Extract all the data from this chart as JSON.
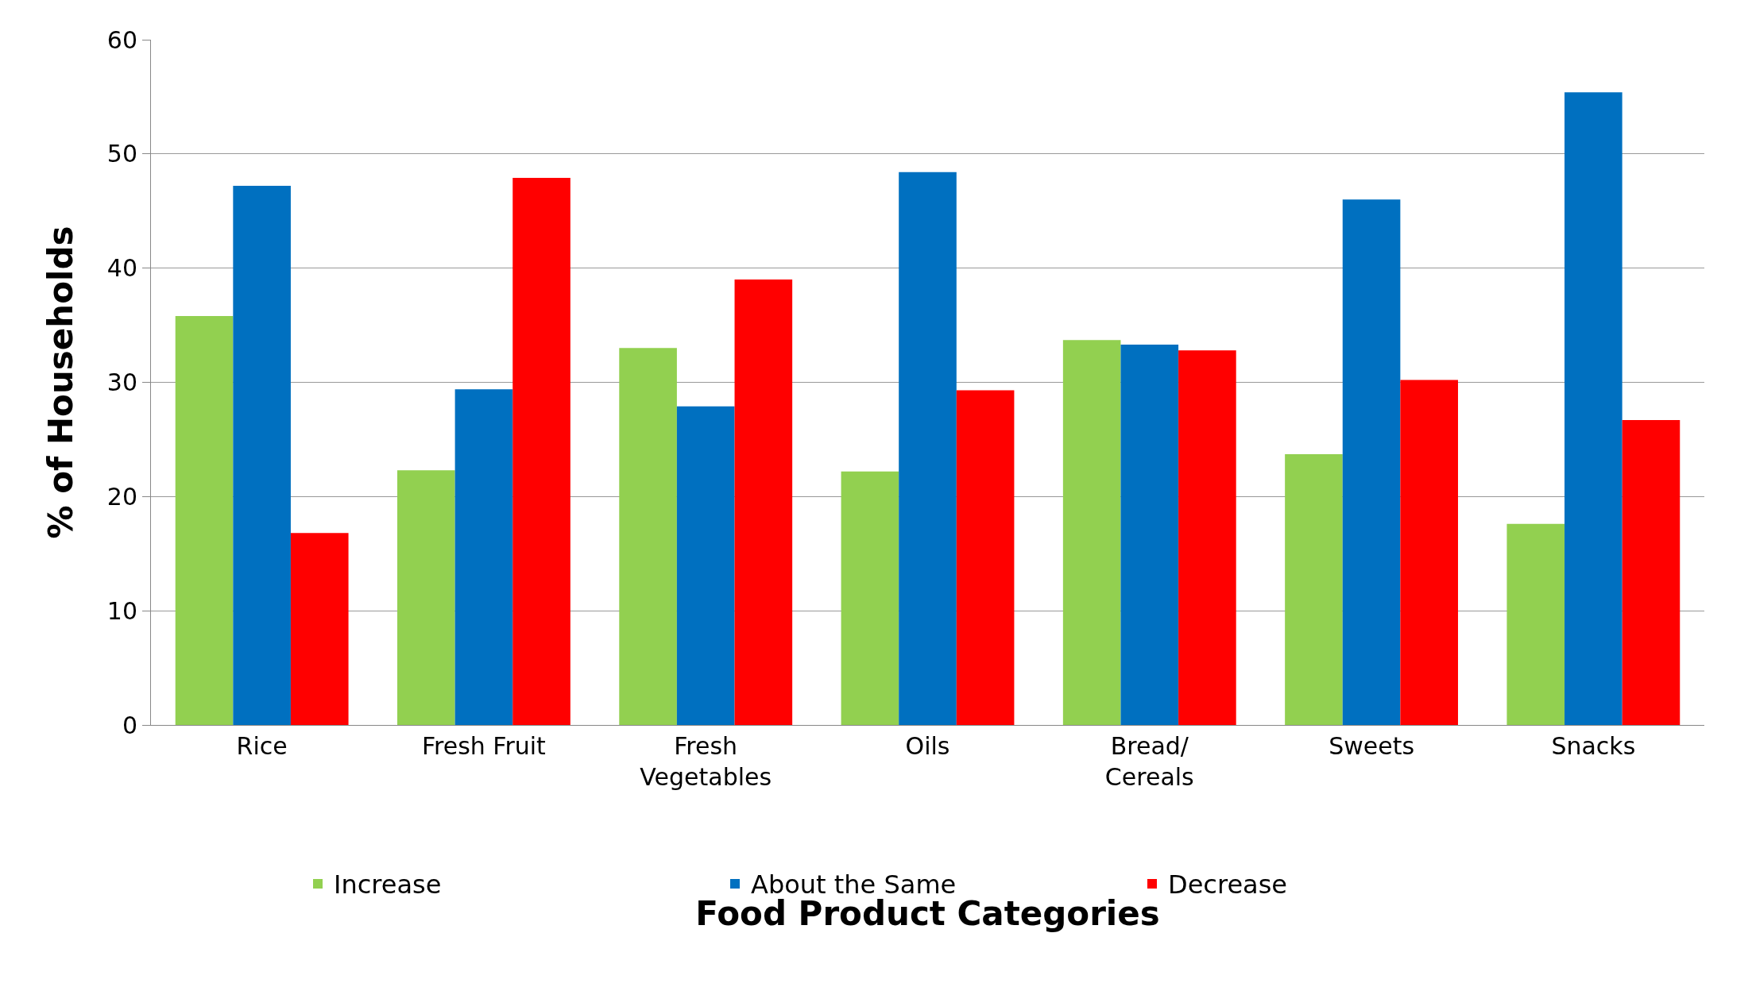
{
  "chart_data": {
    "type": "bar",
    "xlabel": "Food Product Categories",
    "ylabel": "% of Households",
    "categories": [
      "Rice",
      "Fresh Fruit",
      "Fresh\nVegetables",
      "Oils",
      "Bread/\nCereals",
      "Sweets",
      "Snacks"
    ],
    "series": [
      {
        "name": "Increase",
        "color": "#92d050",
        "values": [
          35.8,
          22.3,
          33.0,
          22.2,
          33.7,
          23.7,
          17.6
        ]
      },
      {
        "name": "About the Same",
        "color": "#0070c0",
        "values": [
          47.2,
          29.4,
          27.9,
          48.4,
          33.3,
          46.0,
          55.4
        ]
      },
      {
        "name": "Decrease",
        "color": "#ff0000",
        "values": [
          16.8,
          47.9,
          39.0,
          29.3,
          32.8,
          30.2,
          26.7
        ]
      }
    ],
    "ylim": [
      0,
      60
    ],
    "yticks": [
      0,
      10,
      20,
      30,
      40,
      50,
      60
    ],
    "grid": "y",
    "legend": "bottom"
  }
}
